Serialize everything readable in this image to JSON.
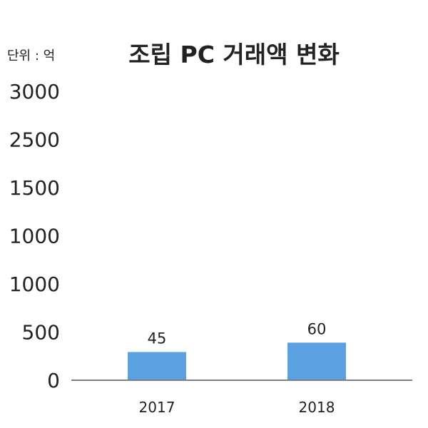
{
  "chart_data": {
    "type": "bar",
    "title": "조립 PC 거래액 변화",
    "unit_label": "단위 : 억",
    "categories": [
      "2017",
      "2018"
    ],
    "values": [
      45,
      60
    ],
    "data_labels": [
      "45",
      "60"
    ],
    "ytick_labels": [
      "0",
      "500",
      "1000",
      "1000",
      "1500",
      "2500",
      "3000"
    ],
    "bar_color": "#5BA0E0",
    "axis_color": "#7F7F7F",
    "grid": false
  }
}
